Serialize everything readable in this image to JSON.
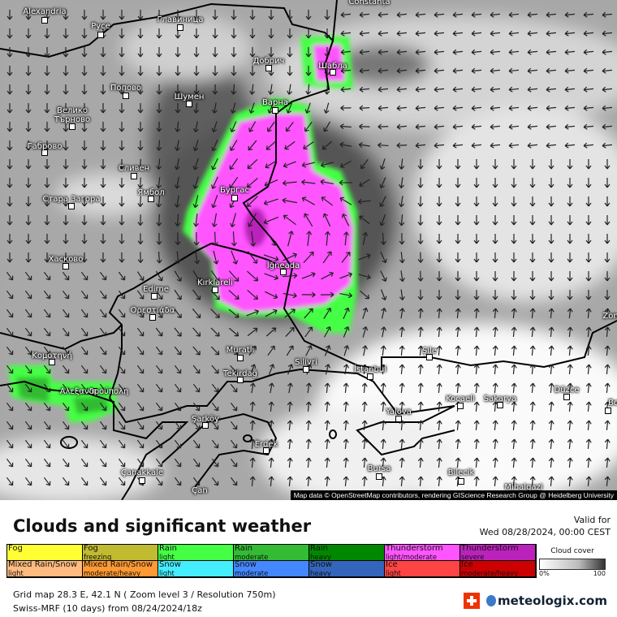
{
  "map": {
    "attribution": "Map data © OpenStreetMap contributors, rendering GIScience Research Group @ Heidelberg University",
    "cities": [
      "Alexandria",
      "Русе",
      "Главиница",
      "Добрич",
      "Шабла",
      "Constanța",
      "Попово",
      "Шумен",
      "Варна",
      "Велико Търново",
      "Габрово",
      "Сливен",
      "Ямбол",
      "Бургас",
      "Стара Загора",
      "Хасково",
      "Edirne",
      "Kırklareli",
      "İğneada",
      "Ορεστιάδα",
      "Κομοτηνή",
      "Αλεξανδρούπολη",
      "Muratlı",
      "Tekirdağ",
      "Silivri",
      "İstanbul",
      "Şile",
      "Kocaeli",
      "Sakarya",
      "Düzce",
      "Bolu",
      "Yalova",
      "Bursa",
      "Bilecik",
      "Mihalgazi",
      "Şarköy",
      "Erdek",
      "Çanakkale",
      "Çan",
      "Zon"
    ],
    "colors": {
      "thunderstorm": "#ff55ff",
      "thunderstorm_severe": "#bb22bb",
      "rain_light": "#44ff44",
      "rain_moderate": "#33bb33"
    }
  },
  "legend": {
    "title": "Clouds and significant weather",
    "valid_label": "Valid for",
    "valid_time": "Wed 08/28/2024, 00:00 CEST",
    "items": [
      {
        "label": "Fog",
        "sub": "",
        "color": "#ffff33"
      },
      {
        "label": "Fog",
        "sub": "freezing",
        "color": "#c0bb30"
      },
      {
        "label": "Rain",
        "sub": "light",
        "color": "#44ff44"
      },
      {
        "label": "Rain",
        "sub": "moderate",
        "color": "#33bb33"
      },
      {
        "label": "Rain",
        "sub": "heavy",
        "color": "#008800"
      },
      {
        "label": "Thunderstorm",
        "sub": "light/moderate",
        "color": "#ff55ff"
      },
      {
        "label": "Thunderstorm",
        "sub": "severe",
        "color": "#bb22bb"
      },
      {
        "label": "Mixed Rain/Snow",
        "sub": "light",
        "color": "#ffbb80"
      },
      {
        "label": "Mixed Rain/Snow",
        "sub": "moderate/heavy",
        "color": "#ff9933"
      },
      {
        "label": "Snow",
        "sub": "light",
        "color": "#44eeff"
      },
      {
        "label": "Snow",
        "sub": "moderate",
        "color": "#4488ff"
      },
      {
        "label": "Snow",
        "sub": "heavy",
        "color": "#3366bb"
      },
      {
        "label": "Ice",
        "sub": "light",
        "color": "#ff4444"
      },
      {
        "label": "Ice",
        "sub": "moderate/heavy",
        "color": "#cc0000"
      }
    ],
    "cloud_cover": {
      "label": "Cloud cover",
      "min": "0%",
      "max": "100"
    },
    "grid_info": "Grid map 28.3 E, 42.1 N ( Zoom level 3 / Resolution 750m)",
    "model_info": "Swiss-MRF (10 days) from  08/24/2024/18z",
    "brand": "meteologix.com"
  }
}
